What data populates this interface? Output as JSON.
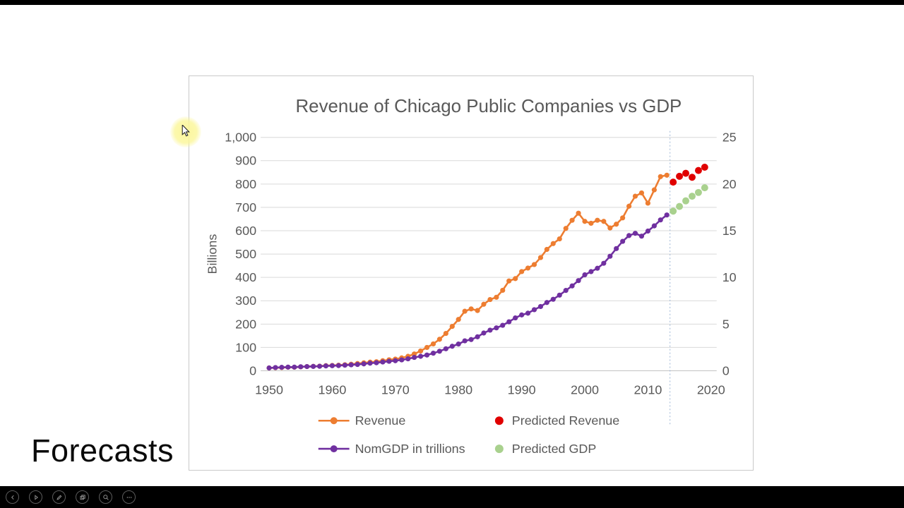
{
  "slide": {
    "caption": "Forecasts"
  },
  "chart": {
    "title": "Revenue of Chicago Public Companies vs GDP",
    "left_axis": {
      "label": "Billions",
      "ticks": [
        "0",
        "100",
        "200",
        "300",
        "400",
        "500",
        "600",
        "700",
        "800",
        "900",
        "1,000"
      ]
    },
    "right_axis": {
      "ticks": [
        "0",
        "5",
        "10",
        "15",
        "20",
        "25"
      ]
    },
    "x_axis": {
      "ticks": [
        1950,
        1960,
        1970,
        1980,
        1990,
        2000,
        2010,
        2020
      ]
    },
    "legend": [
      {
        "label": "Revenue",
        "marker": "line-dot",
        "color": "#ED7D31",
        "row": 1,
        "col": 1
      },
      {
        "label": "Predicted Revenue",
        "marker": "dot",
        "color": "#E00000",
        "row": 1,
        "col": 2
      },
      {
        "label": "NomGDP in trillions",
        "marker": "line-dot",
        "color": "#7030A0",
        "row": 2,
        "col": 1
      },
      {
        "label": "Predicted GDP",
        "marker": "dot",
        "color": "#A9D18E",
        "row": 2,
        "col": 2
      }
    ]
  },
  "chart_data": {
    "type": "line",
    "x_range": [
      1950,
      2020
    ],
    "left_range": [
      0,
      1000
    ],
    "right_range": [
      0,
      25
    ],
    "forecast_divider_x": 2013.5,
    "grid": true,
    "legend_position": "bottom",
    "series": [
      {
        "name": "Revenue",
        "axis": "left",
        "color": "#ED7D31",
        "style": "line-dot",
        "x_start": 1950,
        "values": [
          12,
          13,
          14,
          15,
          15,
          17,
          18,
          19,
          20,
          22,
          23,
          24,
          26,
          28,
          31,
          34,
          37,
          39,
          43,
          47,
          50,
          55,
          62,
          72,
          85,
          100,
          115,
          135,
          160,
          190,
          220,
          255,
          265,
          258,
          285,
          305,
          315,
          345,
          385,
          395,
          425,
          440,
          455,
          485,
          520,
          545,
          565,
          610,
          645,
          675,
          640,
          632,
          645,
          640,
          612,
          628,
          655,
          705,
          748,
          762,
          718,
          775,
          832,
          838
        ]
      },
      {
        "name": "Predicted Revenue",
        "axis": "left",
        "color": "#E00000",
        "style": "points",
        "x_start": 2014,
        "values": [
          808,
          833,
          846,
          829,
          858,
          872
        ]
      },
      {
        "name": "NomGDP in trillions",
        "axis": "right",
        "color": "#7030A0",
        "style": "line-dot",
        "x_start": 1950,
        "values": [
          0.3,
          0.35,
          0.37,
          0.39,
          0.39,
          0.43,
          0.45,
          0.47,
          0.48,
          0.52,
          0.54,
          0.56,
          0.6,
          0.64,
          0.68,
          0.74,
          0.81,
          0.86,
          0.94,
          1.02,
          1.08,
          1.17,
          1.28,
          1.43,
          1.55,
          1.69,
          1.88,
          2.09,
          2.36,
          2.63,
          2.86,
          3.21,
          3.34,
          3.64,
          4.04,
          4.35,
          4.59,
          4.87,
          5.25,
          5.66,
          5.98,
          6.17,
          6.54,
          6.88,
          7.31,
          7.66,
          8.1,
          8.61,
          9.09,
          9.66,
          10.28,
          10.62,
          10.98,
          11.51,
          12.27,
          13.09,
          13.86,
          14.48,
          14.72,
          14.42,
          14.96,
          15.52,
          16.16,
          16.69
        ]
      },
      {
        "name": "Predicted GDP",
        "axis": "right",
        "color": "#A9D18E",
        "style": "points",
        "x_start": 2014,
        "values": [
          17.1,
          17.6,
          18.2,
          18.7,
          19.1,
          19.6
        ]
      }
    ]
  },
  "player": {
    "buttons": [
      {
        "name": "previous"
      },
      {
        "name": "play"
      },
      {
        "name": "draw"
      },
      {
        "name": "copy-frames"
      },
      {
        "name": "zoom"
      },
      {
        "name": "more"
      }
    ]
  },
  "colors": {
    "title_text": "#595959",
    "axis_text": "#595959",
    "gridline": "#d9d9d9",
    "forecast_divider": "#9db6d6",
    "highlight": "#fbf698"
  }
}
